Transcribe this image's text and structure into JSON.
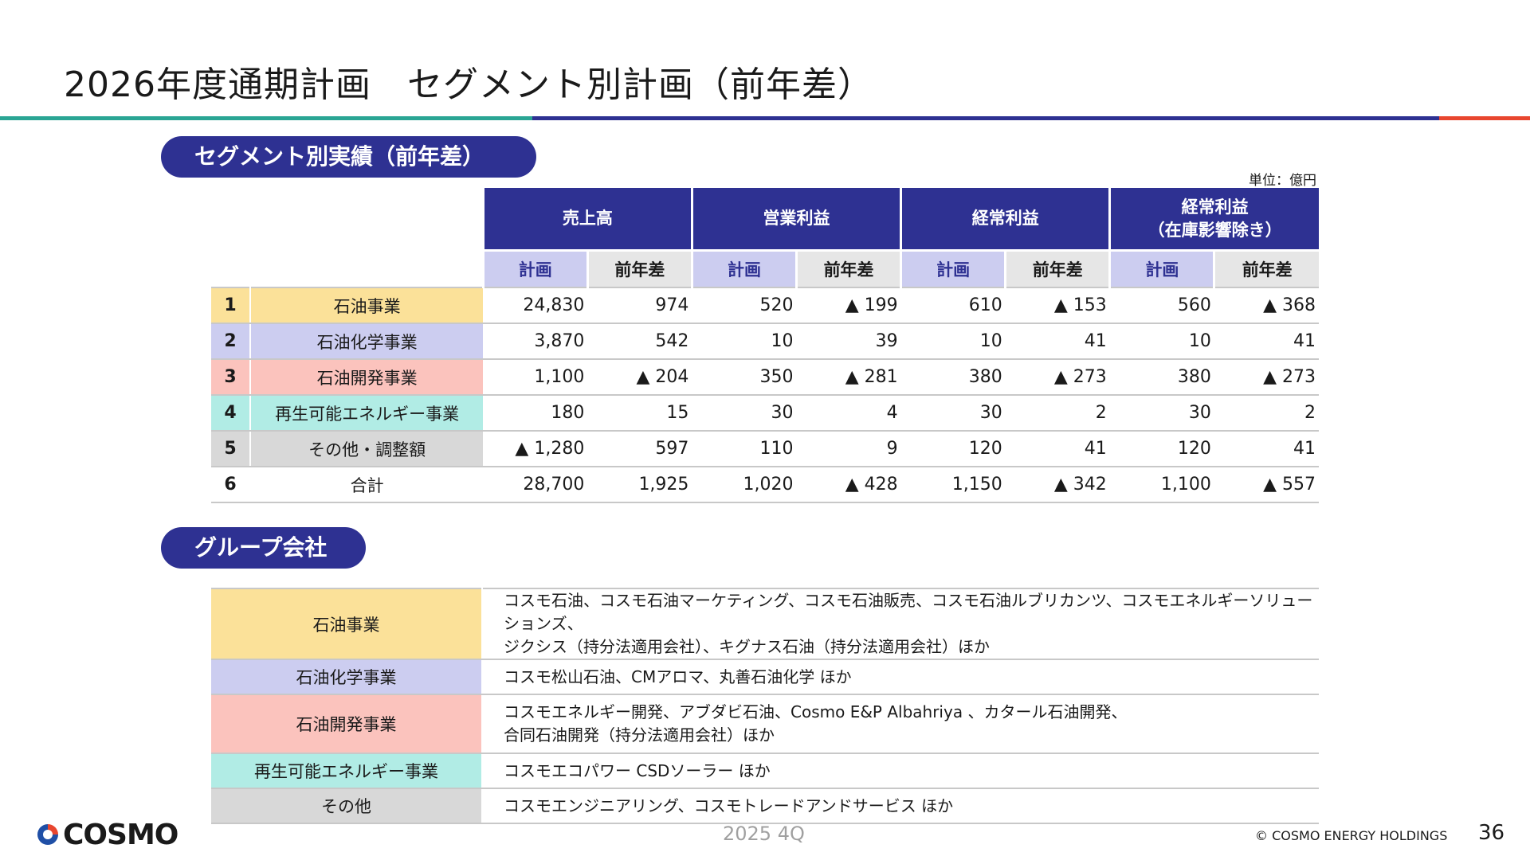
{
  "title": "2026年度通期計画　セグメント別計画（前年差）",
  "colors": {
    "navy": "#2e3192",
    "teal": "#2aa594",
    "red": "#e8462f",
    "plan_sub_bg": "#cccdf0",
    "diff_sub_bg": "#e6e6e6",
    "petroleum": "#fbe199",
    "petrochemical": "#cccdf0",
    "exploration": "#fbc3bd",
    "renewable": "#b1ece5",
    "other": "#d8d8d8"
  },
  "section1": {
    "label": "セグメント別実績（前年差）",
    "unit": "単位：億円",
    "headers": [
      "売上高",
      "営業利益",
      "経常利益",
      "経常利益\n（在庫影響除き）"
    ],
    "sub_plan": "計画",
    "sub_diff": "前年差",
    "rows": [
      {
        "num": "1",
        "name": "石油事業",
        "color_key": "petroleum",
        "values": [
          "24,830",
          "974",
          "520",
          "▲ 199",
          "610",
          "▲ 153",
          "560",
          "▲ 368"
        ]
      },
      {
        "num": "2",
        "name": "石油化学事業",
        "color_key": "petrochemical",
        "values": [
          "3,870",
          "542",
          "10",
          "39",
          "10",
          "41",
          "10",
          "41"
        ]
      },
      {
        "num": "3",
        "name": "石油開発事業",
        "color_key": "exploration",
        "values": [
          "1,100",
          "▲ 204",
          "350",
          "▲ 281",
          "380",
          "▲ 273",
          "380",
          "▲ 273"
        ]
      },
      {
        "num": "4",
        "name": "再生可能エネルギー事業",
        "color_key": "renewable",
        "values": [
          "180",
          "15",
          "30",
          "4",
          "30",
          "2",
          "30",
          "2"
        ]
      },
      {
        "num": "5",
        "name": "その他・調整額",
        "color_key": "other",
        "values": [
          "▲ 1,280",
          "597",
          "110",
          "9",
          "120",
          "41",
          "120",
          "41"
        ]
      },
      {
        "num": "6",
        "name": "合計",
        "color_key": "",
        "values": [
          "28,700",
          "1,925",
          "1,020",
          "▲ 428",
          "1,150",
          "▲ 342",
          "1,100",
          "▲ 557"
        ]
      }
    ]
  },
  "section2": {
    "label": "グループ会社",
    "rows": [
      {
        "name": "石油事業",
        "color_key": "petroleum",
        "lines": [
          "コスモ石油、コスモ石油マーケティング、コスモ石油販売、コスモ石油ルブリカンツ、コスモエネルギーソリューションズ、",
          "ジクシス（持分法適用会社）、キグナス石油（持分法適用会社）ほか"
        ]
      },
      {
        "name": "石油化学事業",
        "color_key": "petrochemical",
        "lines": [
          "コスモ松山石油、CMアロマ、丸善石油化学 ほか"
        ]
      },
      {
        "name": "石油開発事業",
        "color_key": "exploration",
        "lines": [
          "コスモエネルギー開発、アブダビ石油、Cosmo E&P Albahriya 、カタール石油開発、",
          "合同石油開発（持分法適用会社）ほか"
        ]
      },
      {
        "name": "再生可能エネルギー事業",
        "color_key": "renewable",
        "lines": [
          "コスモエコパワー CSDソーラー ほか"
        ]
      },
      {
        "name": "その他",
        "color_key": "other",
        "lines": [
          "コスモエンジニアリング、コスモトレードアンドサービス ほか"
        ]
      }
    ]
  },
  "footer": {
    "logo_text": "COSMO",
    "period": "2025 4Q",
    "copyright": "© COSMO ENERGY HOLDINGS",
    "page": "36"
  }
}
